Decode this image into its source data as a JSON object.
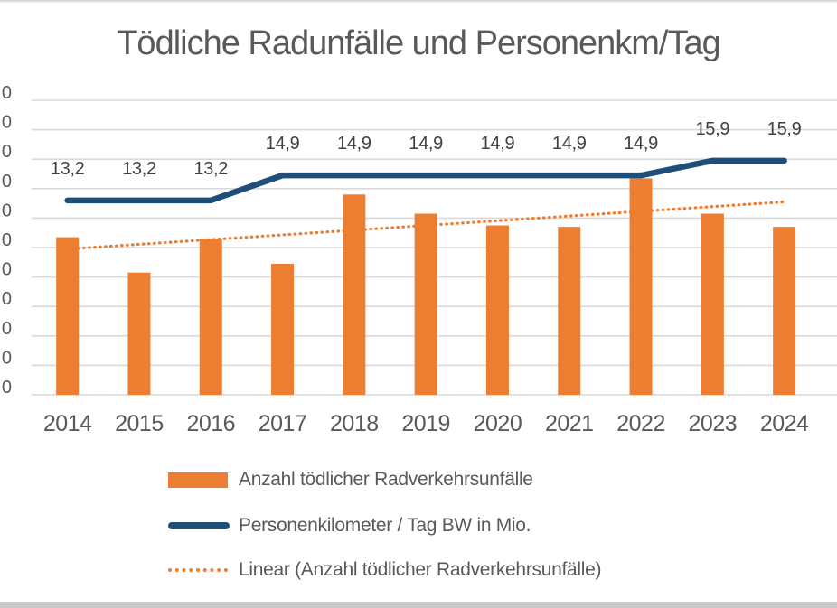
{
  "title": "Tödliche Radunfälle und Personenkm/Tag",
  "colors": {
    "bar": "#ED7D31",
    "line": "#1F4E79",
    "trend": "#ED7D31",
    "gridline": "#D9D9D9",
    "title_text": "#595959",
    "axis_text": "#595959",
    "data_label_text": "#404040",
    "legend_text": "#595959"
  },
  "legend": {
    "items": [
      {
        "label": "Anzahl tödlicher Radverkehrsunfälle",
        "swatch": "orange-bar",
        "color": "#ED7D31"
      },
      {
        "label": "Personenkilometer / Tag BW in Mio.",
        "swatch": "navy-line",
        "color": "#1F4E79"
      },
      {
        "label": "Linear (Anzahl tödlicher Radverkehrsunfälle)",
        "swatch": "orange-dotted-line",
        "color": "#ED7D31"
      }
    ]
  },
  "chart_data": {
    "type": "bar",
    "title": "Tödliche Radunfälle und Personenkm/Tag",
    "categories": [
      "2014",
      "2015",
      "2016",
      "2017",
      "2018",
      "2019",
      "2020",
      "2021",
      "2022",
      "2023",
      "2024"
    ],
    "series": [
      {
        "name": "Anzahl tödlicher Radverkehrsunfälle",
        "type": "bar",
        "values": [
          10.7,
          8.3,
          10.6,
          8.9,
          13.6,
          12.3,
          11.5,
          11.4,
          14.7,
          12.3,
          11.4
        ]
      },
      {
        "name": "Personenkilometer / Tag BW in Mio.",
        "type": "line",
        "values": [
          13.2,
          13.2,
          13.2,
          14.9,
          14.9,
          14.9,
          14.9,
          14.9,
          14.9,
          15.9,
          15.9
        ],
        "point_labels": [
          "13,2",
          "13,2",
          "13,2",
          "14,9",
          "14,9",
          "14,9",
          "14,9",
          "14,9",
          "14,9",
          "15,9",
          "15,9"
        ],
        "labels_shown_once_per_segment": false
      },
      {
        "name": "Linear (Anzahl tödlicher Radverkehrsunfälle)",
        "type": "linear-trend",
        "start_value": 9.9,
        "end_value": 13.1
      }
    ],
    "y_axis": {
      "min": 0,
      "max": 20,
      "step": 2,
      "gridlines": 11,
      "visible_tick_text": "0",
      "labels_cut_off_at_left_edge": true
    },
    "xlabel": "",
    "ylabel": "",
    "grid": true,
    "legend_position": "bottom"
  }
}
